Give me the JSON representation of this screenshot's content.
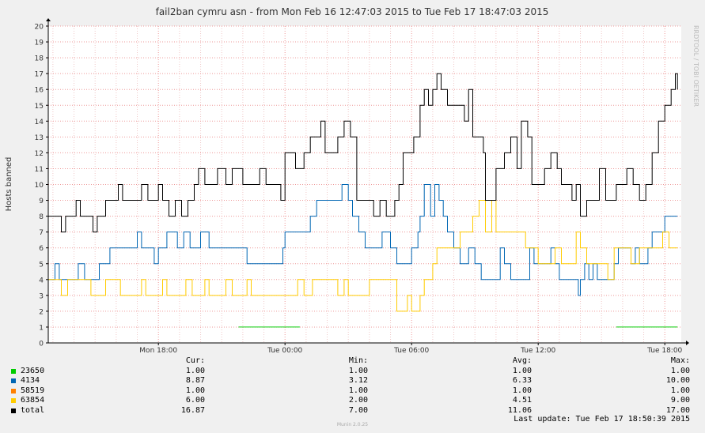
{
  "chart_data": {
    "type": "line",
    "title": "fail2ban cymru asn - from Mon Feb 16 12:47:03 2015 to Tue Feb 17 18:47:03 2015",
    "ylabel": "Hosts banned",
    "watermark": "RRDTOOL / TOBI OETIKER",
    "ylim": [
      0,
      20
    ],
    "yticks": [
      "0",
      "1",
      "2",
      "3",
      "4",
      "5",
      "6",
      "7",
      "8",
      "9",
      "10",
      "11",
      "12",
      "13",
      "14",
      "15",
      "16",
      "17",
      "18",
      "19",
      "20"
    ],
    "xlim_hours": [
      12.78,
      42.78
    ],
    "xticks": [
      {
        "label": "Mon 18:00",
        "hour": 18
      },
      {
        "label": "Tue 00:00",
        "hour": 24
      },
      {
        "label": "Tue 06:00",
        "hour": 30
      },
      {
        "label": "Tue 12:00",
        "hour": 36
      },
      {
        "label": "Tue 18:00",
        "hour": 42
      }
    ],
    "grid": true,
    "series": [
      {
        "name": "23650",
        "color": "#00cc00",
        "segments": [
          [
            [
              21.8,
              1
            ],
            [
              24.7,
              1
            ]
          ],
          [
            [
              39.7,
              1
            ],
            [
              42.6,
              1
            ]
          ]
        ]
      },
      {
        "name": "4134",
        "color": "#0066b3",
        "points": [
          [
            12.8,
            4
          ],
          [
            13.1,
            5
          ],
          [
            13.3,
            4
          ],
          [
            14,
            4
          ],
          [
            14.2,
            5
          ],
          [
            14.5,
            4
          ],
          [
            14.9,
            4
          ],
          [
            15.2,
            5
          ],
          [
            15.7,
            6
          ],
          [
            16.8,
            6
          ],
          [
            17,
            7
          ],
          [
            17.2,
            6
          ],
          [
            17.6,
            6
          ],
          [
            17.8,
            5
          ],
          [
            18,
            6
          ],
          [
            18.4,
            7
          ],
          [
            18.9,
            6
          ],
          [
            19.2,
            7
          ],
          [
            19.5,
            6
          ],
          [
            20,
            7
          ],
          [
            20.4,
            6
          ],
          [
            21.8,
            6
          ],
          [
            22.2,
            5
          ],
          [
            23,
            5
          ],
          [
            23.6,
            5
          ],
          [
            23.9,
            6
          ],
          [
            24,
            7
          ],
          [
            24.9,
            7
          ],
          [
            25.2,
            8
          ],
          [
            25.5,
            9
          ],
          [
            26.6,
            9
          ],
          [
            26.7,
            10
          ],
          [
            27,
            9
          ],
          [
            27.2,
            8
          ],
          [
            27.5,
            7
          ],
          [
            27.8,
            6
          ],
          [
            28.5,
            6
          ],
          [
            28.6,
            7
          ],
          [
            29,
            6
          ],
          [
            29.3,
            5
          ],
          [
            30,
            6
          ],
          [
            30.3,
            7
          ],
          [
            30.4,
            8
          ],
          [
            30.6,
            10
          ],
          [
            30.9,
            8
          ],
          [
            31.1,
            10
          ],
          [
            31.3,
            9
          ],
          [
            31.5,
            8
          ],
          [
            31.7,
            7
          ],
          [
            32,
            6
          ],
          [
            32.3,
            5
          ],
          [
            32.7,
            6
          ],
          [
            33,
            5
          ],
          [
            33.3,
            4
          ],
          [
            34,
            4
          ],
          [
            34.2,
            6
          ],
          [
            34.4,
            5
          ],
          [
            34.7,
            4
          ],
          [
            35.3,
            4
          ],
          [
            35.6,
            6
          ],
          [
            35.8,
            5
          ],
          [
            36.5,
            5
          ],
          [
            36.6,
            6
          ],
          [
            36.8,
            5
          ],
          [
            37,
            4
          ],
          [
            37.7,
            4
          ],
          [
            37.9,
            3
          ],
          [
            38,
            4
          ],
          [
            38.2,
            5
          ],
          [
            38.4,
            4
          ],
          [
            38.6,
            5
          ],
          [
            38.8,
            4
          ],
          [
            39.4,
            4
          ],
          [
            39.6,
            5
          ],
          [
            39.8,
            6
          ],
          [
            40.2,
            6
          ],
          [
            40.4,
            5
          ],
          [
            40.6,
            6
          ],
          [
            40.8,
            5
          ],
          [
            41.2,
            6
          ],
          [
            41.4,
            7
          ],
          [
            41.8,
            7
          ],
          [
            42,
            8
          ],
          [
            42.6,
            8
          ]
        ]
      },
      {
        "name": "58519",
        "color": "#ff8000",
        "segments": []
      },
      {
        "name": "63854",
        "color": "#ffcc00",
        "points": [
          [
            12.8,
            4
          ],
          [
            13.2,
            4
          ],
          [
            13.4,
            3
          ],
          [
            13.7,
            4
          ],
          [
            14.5,
            4
          ],
          [
            14.8,
            3
          ],
          [
            15.2,
            3
          ],
          [
            15.5,
            4
          ],
          [
            16,
            4
          ],
          [
            16.2,
            3
          ],
          [
            17,
            3
          ],
          [
            17.2,
            4
          ],
          [
            17.4,
            3
          ],
          [
            18,
            3
          ],
          [
            18.2,
            4
          ],
          [
            18.4,
            3
          ],
          [
            19,
            3
          ],
          [
            19.3,
            4
          ],
          [
            19.6,
            3
          ],
          [
            20,
            3
          ],
          [
            20.2,
            4
          ],
          [
            20.4,
            3
          ],
          [
            21,
            3
          ],
          [
            21.2,
            4
          ],
          [
            21.5,
            3
          ],
          [
            22,
            3
          ],
          [
            22.2,
            4
          ],
          [
            22.4,
            3
          ],
          [
            24.4,
            3
          ],
          [
            24.6,
            4
          ],
          [
            24.9,
            3
          ],
          [
            25.2,
            3
          ],
          [
            25.3,
            4
          ],
          [
            26.3,
            4
          ],
          [
            26.5,
            3
          ],
          [
            26.8,
            4
          ],
          [
            27,
            3
          ],
          [
            27.7,
            3
          ],
          [
            28,
            4
          ],
          [
            29.2,
            4
          ],
          [
            29.3,
            2
          ],
          [
            29.8,
            3
          ],
          [
            30,
            2
          ],
          [
            30.2,
            2
          ],
          [
            30.4,
            3
          ],
          [
            30.6,
            4
          ],
          [
            31,
            5
          ],
          [
            31.2,
            6
          ],
          [
            32,
            6
          ],
          [
            32.3,
            7
          ],
          [
            32.6,
            7
          ],
          [
            32.9,
            8
          ],
          [
            33.2,
            9
          ],
          [
            33.5,
            7
          ],
          [
            33.8,
            9
          ],
          [
            34,
            7
          ],
          [
            35.2,
            7
          ],
          [
            35.4,
            6
          ],
          [
            35.6,
            6
          ],
          [
            36,
            5
          ],
          [
            36.5,
            5
          ],
          [
            36.8,
            6
          ],
          [
            37.1,
            5
          ],
          [
            37.8,
            7
          ],
          [
            38,
            6
          ],
          [
            38.3,
            5
          ],
          [
            39,
            5
          ],
          [
            39.3,
            4
          ],
          [
            39.6,
            6
          ],
          [
            40.4,
            5
          ],
          [
            40.8,
            6
          ],
          [
            41.6,
            6
          ],
          [
            41.9,
            7
          ],
          [
            42.2,
            6
          ],
          [
            42.6,
            6
          ]
        ]
      },
      {
        "name": "total",
        "color": "#000000",
        "points": [
          [
            12.8,
            8
          ],
          [
            13.2,
            8
          ],
          [
            13.4,
            7
          ],
          [
            13.6,
            8
          ],
          [
            13.9,
            8
          ],
          [
            14.1,
            9
          ],
          [
            14.3,
            8
          ],
          [
            14.6,
            8
          ],
          [
            14.9,
            7
          ],
          [
            15.1,
            8
          ],
          [
            15.5,
            9
          ],
          [
            15.9,
            9
          ],
          [
            16.1,
            10
          ],
          [
            16.3,
            9
          ],
          [
            17,
            9
          ],
          [
            17.2,
            10
          ],
          [
            17.5,
            9
          ],
          [
            17.9,
            9
          ],
          [
            18,
            10
          ],
          [
            18.2,
            9
          ],
          [
            18.5,
            8
          ],
          [
            18.8,
            9
          ],
          [
            19.1,
            8
          ],
          [
            19.4,
            9
          ],
          [
            19.7,
            10
          ],
          [
            19.9,
            11
          ],
          [
            20.2,
            10
          ],
          [
            20.6,
            10
          ],
          [
            20.8,
            11
          ],
          [
            21.2,
            10
          ],
          [
            21.5,
            11
          ],
          [
            22,
            10
          ],
          [
            22.5,
            10
          ],
          [
            22.8,
            11
          ],
          [
            23.1,
            10
          ],
          [
            23.6,
            10
          ],
          [
            23.8,
            9
          ],
          [
            24,
            12
          ],
          [
            24.3,
            12
          ],
          [
            24.5,
            11
          ],
          [
            24.9,
            12
          ],
          [
            25.2,
            13
          ],
          [
            25.5,
            13
          ],
          [
            25.7,
            14
          ],
          [
            25.9,
            12
          ],
          [
            26.3,
            12
          ],
          [
            26.5,
            13
          ],
          [
            26.8,
            14
          ],
          [
            27.1,
            13
          ],
          [
            27.4,
            9
          ],
          [
            28,
            9
          ],
          [
            28.2,
            8
          ],
          [
            28.5,
            9
          ],
          [
            28.8,
            8
          ],
          [
            29.2,
            9
          ],
          [
            29.4,
            10
          ],
          [
            29.6,
            12
          ],
          [
            29.9,
            12
          ],
          [
            30.1,
            13
          ],
          [
            30.4,
            15
          ],
          [
            30.6,
            16
          ],
          [
            30.8,
            15
          ],
          [
            31,
            16
          ],
          [
            31.2,
            17
          ],
          [
            31.4,
            16
          ],
          [
            31.7,
            15
          ],
          [
            32.2,
            15
          ],
          [
            32.5,
            14
          ],
          [
            32.7,
            16
          ],
          [
            32.9,
            13
          ],
          [
            33.1,
            13
          ],
          [
            33.4,
            12
          ],
          [
            33.5,
            9
          ],
          [
            34,
            11
          ],
          [
            34.4,
            12
          ],
          [
            34.7,
            13
          ],
          [
            35,
            11
          ],
          [
            35.2,
            14
          ],
          [
            35.5,
            13
          ],
          [
            35.7,
            10
          ],
          [
            36,
            10
          ],
          [
            36.3,
            11
          ],
          [
            36.6,
            12
          ],
          [
            36.9,
            11
          ],
          [
            37.1,
            10
          ],
          [
            37.4,
            10
          ],
          [
            37.6,
            9
          ],
          [
            37.8,
            10
          ],
          [
            38,
            8
          ],
          [
            38.3,
            9
          ],
          [
            38.6,
            9
          ],
          [
            38.9,
            11
          ],
          [
            39.2,
            9
          ],
          [
            39.5,
            9
          ],
          [
            39.7,
            10
          ],
          [
            40,
            10
          ],
          [
            40.2,
            11
          ],
          [
            40.5,
            10
          ],
          [
            40.8,
            9
          ],
          [
            41.1,
            10
          ],
          [
            41.4,
            12
          ],
          [
            41.7,
            14
          ],
          [
            42,
            15
          ],
          [
            42.3,
            16
          ],
          [
            42.5,
            17
          ],
          [
            42.6,
            16
          ]
        ]
      }
    ]
  },
  "legend": {
    "headers": {
      "cur": "Cur:",
      "min": "Min:",
      "avg": "Avg:",
      "max": "Max:"
    },
    "rows": [
      {
        "name": "23650",
        "color": "#00cc00",
        "cur": "1.00",
        "min": "1.00",
        "avg": "1.00",
        "max": "1.00"
      },
      {
        "name": "4134",
        "color": "#0066b3",
        "cur": "8.87",
        "min": "3.12",
        "avg": "6.33",
        "max": "10.00"
      },
      {
        "name": "58519",
        "color": "#ff8000",
        "cur": "1.00",
        "min": "1.00",
        "avg": "1.00",
        "max": "1.00"
      },
      {
        "name": "63854",
        "color": "#ffcc00",
        "cur": "6.00",
        "min": "2.00",
        "avg": "4.51",
        "max": "9.00"
      },
      {
        "name": "total",
        "color": "#000000",
        "cur": "16.87",
        "min": "7.00",
        "avg": "11.06",
        "max": "17.00"
      }
    ]
  },
  "last_update": "Last update: Tue Feb 17 18:50:39 2015",
  "footer": "Munin 2.0.25"
}
